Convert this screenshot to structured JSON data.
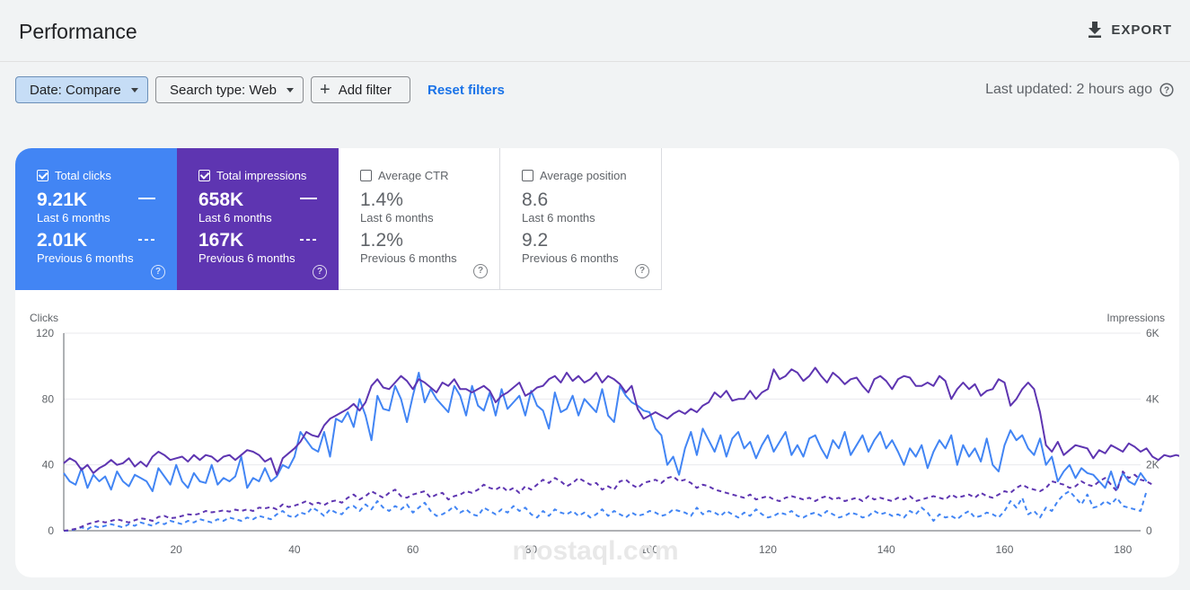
{
  "header": {
    "title": "Performance",
    "export_label": "EXPORT"
  },
  "filters": {
    "date": "Date: Compare",
    "search_type": "Search type: Web",
    "add_filter": "Add filter",
    "reset": "Reset filters",
    "last_updated": "Last updated: 2 hours ago"
  },
  "metrics": [
    {
      "label": "Total clicks",
      "value": "9.21K",
      "period": "Last 6 months",
      "prev_value": "2.01K",
      "prev_period": "Previous 6 months",
      "checked": true,
      "color": "#4285f4"
    },
    {
      "label": "Total impressions",
      "value": "658K",
      "period": "Last 6 months",
      "prev_value": "167K",
      "prev_period": "Previous 6 months",
      "checked": true,
      "color": "#5e35b1"
    },
    {
      "label": "Average CTR",
      "value": "1.4%",
      "period": "Last 6 months",
      "prev_value": "1.2%",
      "prev_period": "Previous 6 months",
      "checked": false
    },
    {
      "label": "Average position",
      "value": "8.6",
      "period": "Last 6 months",
      "prev_value": "9.2",
      "prev_period": "Previous 6 months",
      "checked": false
    }
  ],
  "chart_data": {
    "type": "line",
    "ylabel_left": "Clicks",
    "ylabel_right": "Impressions",
    "ylim_left": [
      0,
      120
    ],
    "ylim_right": [
      0,
      6000
    ],
    "yticks_left": [
      "0",
      "40",
      "80",
      "120"
    ],
    "yticks_right": [
      "0",
      "2K",
      "4K",
      "6K"
    ],
    "xticks": [
      "20",
      "40",
      "60",
      "80",
      "100",
      "120",
      "140",
      "160",
      "180"
    ],
    "xlim": [
      1,
      183
    ],
    "grid": true,
    "series": [
      {
        "name": "Total clicks",
        "period": "Last 6 months",
        "axis": "left",
        "style": "solid",
        "color": "#4285f4",
        "values": [
          35,
          30,
          28,
          38,
          26,
          34,
          30,
          33,
          25,
          36,
          30,
          27,
          34,
          32,
          30,
          24,
          38,
          33,
          28,
          40,
          30,
          26,
          35,
          30,
          29,
          40,
          28,
          32,
          30,
          33,
          45,
          26,
          32,
          30,
          38,
          30,
          33,
          40,
          38,
          45,
          60,
          55,
          50,
          48,
          60,
          45,
          68,
          66,
          72,
          63,
          80,
          70,
          55,
          82,
          74,
          73,
          88,
          80,
          66,
          82,
          96,
          78,
          86,
          80,
          76,
          72,
          88,
          82,
          70,
          88,
          76,
          73,
          84,
          70,
          86,
          74,
          78,
          82,
          70,
          85,
          76,
          73,
          62,
          84,
          72,
          74,
          82,
          70,
          80,
          76,
          72,
          86,
          70,
          66,
          88,
          82,
          78,
          76,
          73,
          72,
          62,
          58,
          40,
          45,
          34,
          50,
          60,
          46,
          62,
          55,
          48,
          58,
          45,
          56,
          60,
          50,
          54,
          44,
          52,
          58,
          48,
          54,
          60,
          46,
          52,
          45,
          56,
          58,
          50,
          44,
          55,
          50,
          60,
          46,
          52,
          58,
          48,
          55,
          60,
          50,
          55,
          48,
          40,
          50,
          45,
          52,
          38,
          48,
          55,
          50,
          58,
          40,
          52,
          45,
          50,
          42,
          56,
          40,
          36,
          52,
          61,
          55,
          58,
          50,
          46,
          56,
          40,
          45,
          30,
          36,
          40,
          32,
          38,
          35,
          34,
          30,
          26,
          36,
          25,
          35,
          30,
          28,
          35,
          30
        ]
      },
      {
        "name": "Total impressions",
        "period": "Last 6 months",
        "axis": "right",
        "style": "solid",
        "color": "#5e35b1",
        "values": [
          2050,
          2200,
          2100,
          1850,
          2000,
          1750,
          1900,
          2000,
          2150,
          2000,
          2050,
          2200,
          1950,
          2100,
          1950,
          2250,
          2400,
          2300,
          2150,
          2200,
          2250,
          2100,
          2300,
          2150,
          2300,
          2250,
          2100,
          2250,
          2300,
          2150,
          2300,
          2450,
          2400,
          2300,
          2100,
          2200,
          1700,
          2200,
          2350,
          2500,
          2700,
          3000,
          2900,
          2850,
          3200,
          3400,
          3500,
          3600,
          3700,
          3850,
          3650,
          3900,
          4400,
          4600,
          4350,
          4300,
          4500,
          4700,
          4550,
          4300,
          4600,
          4500,
          4350,
          4200,
          4500,
          4400,
          4600,
          4300,
          4300,
          4200,
          4300,
          4400,
          4250,
          3900,
          4100,
          4200,
          4350,
          4500,
          4100,
          4200,
          4350,
          4400,
          4600,
          4700,
          4500,
          4800,
          4550,
          4700,
          4500,
          4600,
          4800,
          4500,
          4700,
          4600,
          4450,
          4200,
          4400,
          3700,
          3400,
          3500,
          3600,
          3500,
          3400,
          3550,
          3650,
          3550,
          3700,
          3600,
          3800,
          3900,
          4200,
          4050,
          4250,
          3950,
          4000,
          4000,
          4250,
          4000,
          4200,
          4300,
          4900,
          4600,
          4700,
          4900,
          4800,
          4550,
          4700,
          4950,
          4700,
          4500,
          4800,
          4650,
          4450,
          4600,
          4650,
          4400,
          4200,
          4600,
          4700,
          4550,
          4300,
          4600,
          4700,
          4650,
          4400,
          4400,
          4500,
          4400,
          4700,
          4550,
          4000,
          4300,
          4500,
          4300,
          4450,
          4100,
          4250,
          4300,
          4600,
          4500,
          3800,
          4000,
          4300,
          4500,
          4300,
          3600,
          2600,
          2400,
          2700,
          2300,
          2450,
          2600,
          2550,
          2500,
          2200,
          2450,
          2350,
          2600,
          2500,
          2400,
          2650,
          2550,
          2400,
          2500,
          2250,
          2150,
          2300,
          2250,
          2300,
          2250
        ]
      },
      {
        "name": "Total clicks",
        "period": "Previous 6 months",
        "axis": "left",
        "style": "dashed",
        "color": "#4285f4",
        "values": [
          0,
          0,
          1,
          2,
          1,
          3,
          2,
          3,
          4,
          3,
          2,
          4,
          3,
          5,
          4,
          3,
          5,
          4,
          6,
          5,
          4,
          6,
          5,
          7,
          6,
          5,
          7,
          6,
          8,
          7,
          6,
          8,
          7,
          9,
          8,
          7,
          10,
          12,
          9,
          8,
          11,
          10,
          14,
          12,
          9,
          13,
          11,
          10,
          14,
          15,
          12,
          16,
          13,
          18,
          14,
          12,
          15,
          13,
          16,
          11,
          14,
          17,
          12,
          9,
          10,
          12,
          15,
          11,
          13,
          10,
          9,
          14,
          12,
          10,
          13,
          11,
          15,
          12,
          14,
          10,
          8,
          12,
          9,
          13,
          11,
          10,
          12,
          9,
          11,
          8,
          10,
          13,
          9,
          12,
          10,
          8,
          11,
          9,
          10,
          12,
          11,
          9,
          10,
          13,
          12,
          11,
          9,
          14,
          10,
          12,
          11,
          9,
          12,
          10,
          8,
          11,
          9,
          13,
          10,
          8,
          9,
          11,
          10,
          12,
          9,
          8,
          10,
          11,
          9,
          12,
          10,
          8,
          9,
          11,
          10,
          8,
          9,
          12,
          10,
          11,
          9,
          10,
          8,
          12,
          10,
          14,
          11,
          6,
          10,
          8,
          9,
          7,
          10,
          12,
          8,
          9,
          11,
          10,
          8,
          12,
          18,
          14,
          20,
          10,
          12,
          8,
          14,
          12,
          18,
          22,
          24,
          20,
          16,
          22,
          14,
          15,
          18,
          16,
          20,
          15,
          14,
          13,
          12,
          24
        ]
      },
      {
        "name": "Total impressions",
        "period": "Previous 6 months",
        "axis": "right",
        "style": "dashed",
        "color": "#5e35b1",
        "values": [
          0,
          20,
          60,
          120,
          200,
          250,
          300,
          250,
          300,
          350,
          300,
          250,
          320,
          380,
          350,
          300,
          420,
          450,
          380,
          400,
          450,
          500,
          480,
          520,
          600,
          560,
          580,
          620,
          580,
          640,
          600,
          650,
          600,
          700,
          680,
          720,
          650,
          800,
          720,
          760,
          820,
          900,
          800,
          850,
          780,
          880,
          920,
          850,
          1000,
          1100,
          950,
          1050,
          1200,
          1100,
          1000,
          1150,
          1250,
          1050,
          1000,
          1100,
          1150,
          1200,
          1000,
          1100,
          1150,
          950,
          1050,
          1100,
          1200,
          1150,
          1250,
          1400,
          1300,
          1250,
          1350,
          1200,
          1300,
          1150,
          1350,
          1250,
          1400,
          1550,
          1450,
          1600,
          1500,
          1350,
          1450,
          1600,
          1500,
          1400,
          1450,
          1250,
          1350,
          1250,
          1500,
          1550,
          1400,
          1300,
          1450,
          1500,
          1550,
          1450,
          1600,
          1650,
          1500,
          1550,
          1450,
          1300,
          1400,
          1350,
          1250,
          1200,
          1150,
          1100,
          1050,
          1000,
          1100,
          950,
          1000,
          1050,
          950,
          900,
          1000,
          1050,
          1000,
          950,
          1000,
          900,
          1000,
          1050,
          950,
          1000,
          900,
          950,
          1000,
          900,
          1050,
          950,
          1000,
          950,
          900,
          1000,
          950,
          1050,
          900,
          950,
          1000,
          1050,
          1000,
          950,
          1100,
          1000,
          1050,
          1100,
          1000,
          1150,
          1050,
          1000,
          1100,
          1200,
          1150,
          1300,
          1400,
          1300,
          1250,
          1200,
          1300,
          1500,
          1450,
          1400,
          1300,
          1350,
          1500,
          1400,
          1350,
          1500,
          1600,
          1400,
          1200,
          1800,
          1600,
          1700,
          1550,
          1500,
          1400
        ]
      }
    ]
  },
  "watermark": "mostaql.com"
}
